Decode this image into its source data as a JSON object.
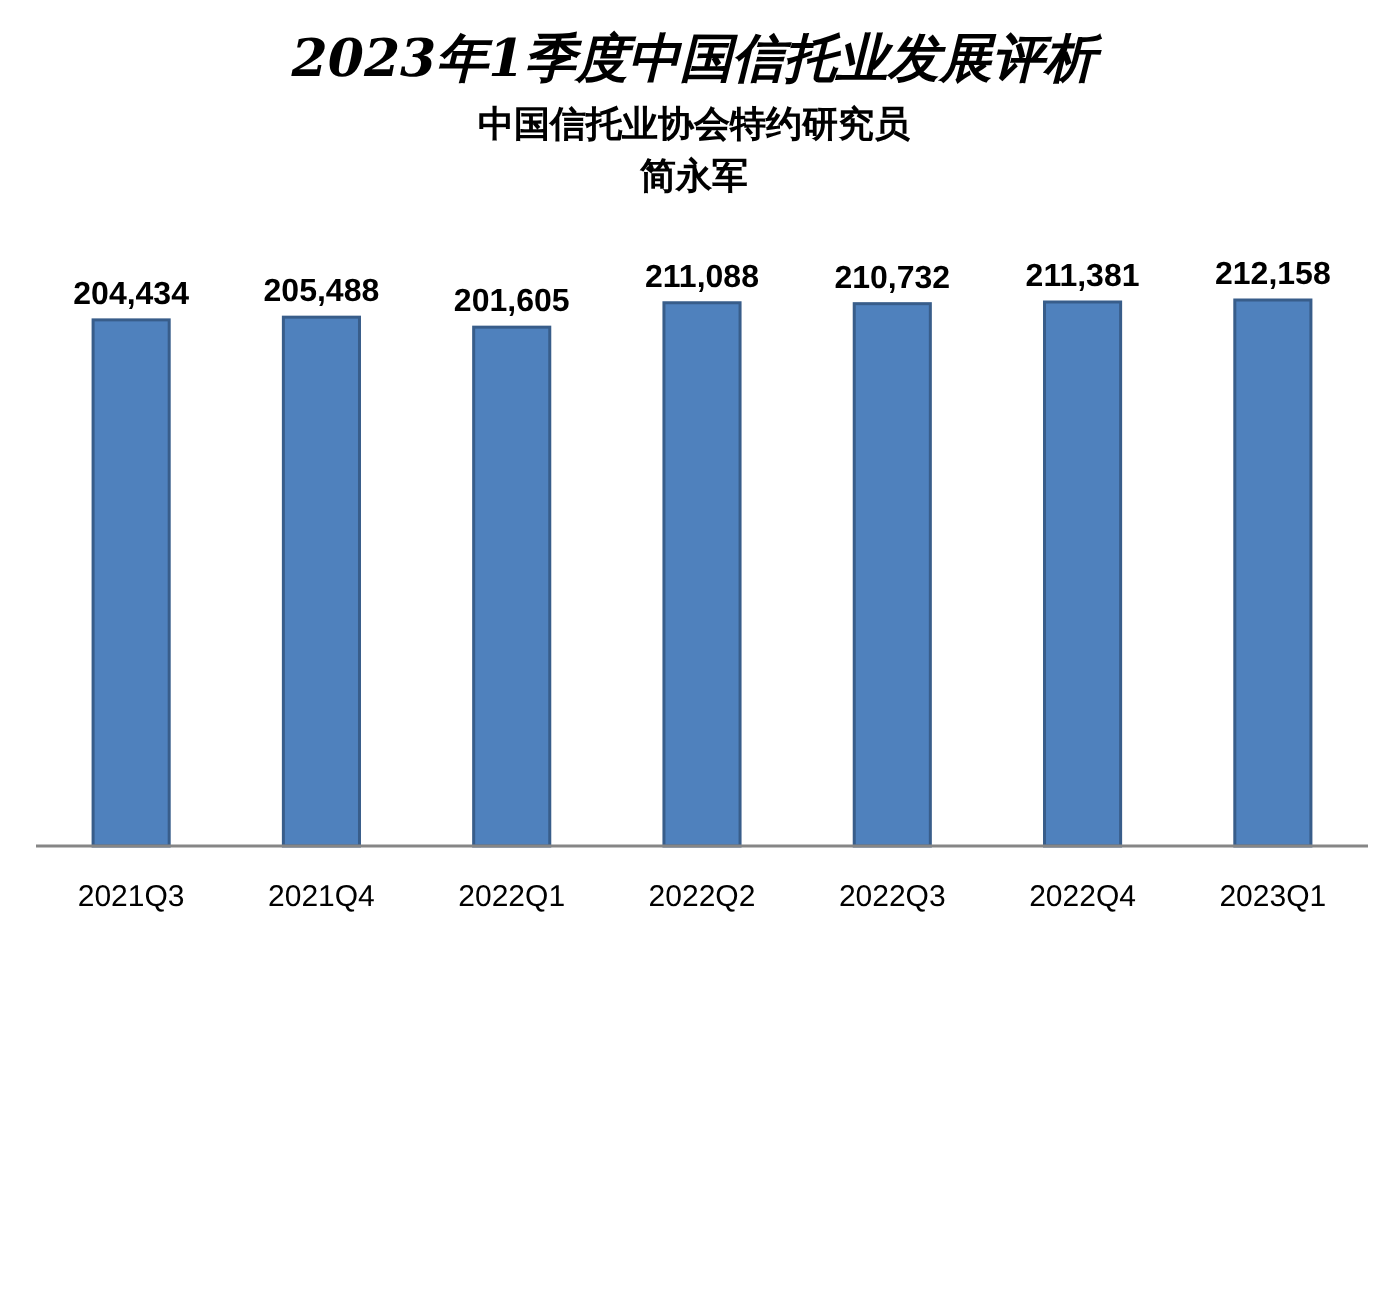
{
  "chart_data": {
    "type": "bar",
    "title": "2023年1季度中国信托业发展评析",
    "subtitle": "中国信托业协会特约研究员",
    "annotations": [
      "简永军"
    ],
    "categories": [
      "2021Q3",
      "2021Q4",
      "2022Q1",
      "2022Q2",
      "2022Q3",
      "2022Q4",
      "2023Q1"
    ],
    "values": [
      204434,
      205488,
      201605,
      211088,
      210732,
      211381,
      212158
    ],
    "value_labels": [
      "204,434",
      "205,488",
      "201,605",
      "211,088",
      "210,732",
      "211,381",
      "212,158"
    ],
    "color": "#4f81bd",
    "tick_labels": "x"
  }
}
